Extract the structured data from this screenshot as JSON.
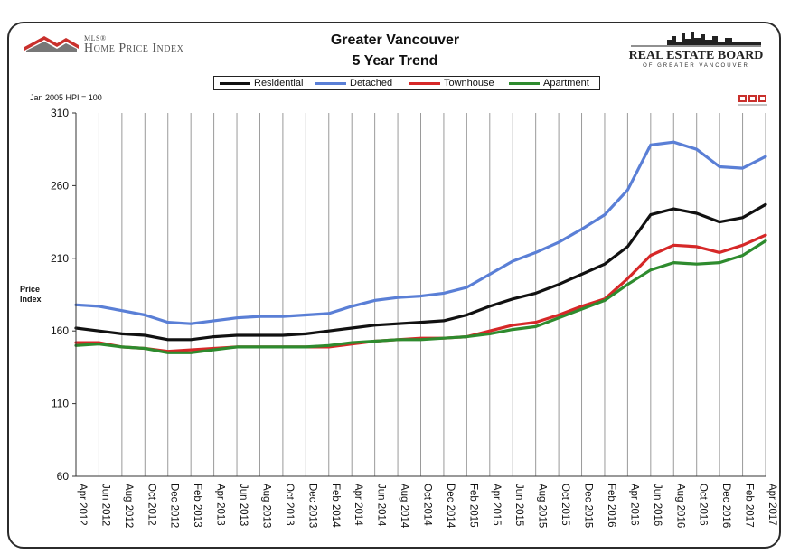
{
  "header": {
    "mls_small": "MLS®",
    "mls_text": "Home Price Index",
    "title_line1": "Greater Vancouver",
    "title_line2": "5 Year Trend",
    "board_name": "REAL ESTATE BOARD",
    "board_sub": "OF GREATER VANCOUVER"
  },
  "chart_data": {
    "type": "line",
    "title": "Greater Vancouver 5 Year Trend",
    "subtitle": "",
    "xlabel": "",
    "ylabel": "Price Index",
    "base_note": "Jan 2005 HPI = 100",
    "ylim": [
      60,
      310
    ],
    "yticks": [
      60,
      110,
      160,
      210,
      260,
      310
    ],
    "grid": "vertical",
    "legend_position": "top",
    "x_tick_labels": [
      "Apr 2012",
      "Jun 2012",
      "Aug 2012",
      "Oct 2012",
      "Dec 2012",
      "Feb 2013",
      "Apr 2013",
      "Jun 2013",
      "Aug 2013",
      "Oct 2013",
      "Dec 2013",
      "Feb 2014",
      "Apr 2014",
      "Jun 2014",
      "Aug 2014",
      "Oct 2014",
      "Dec 2014",
      "Feb 2015",
      "Apr 2015",
      "Jun 2015",
      "Aug 2015",
      "Oct 2015",
      "Dec 2015",
      "Feb 2016",
      "Apr 2016",
      "Jun 2016",
      "Aug 2016",
      "Oct 2016",
      "Dec 2016",
      "Feb 2017",
      "Apr 2017"
    ],
    "x": [
      "2012-04",
      "2012-06",
      "2012-08",
      "2012-10",
      "2012-12",
      "2013-02",
      "2013-04",
      "2013-06",
      "2013-08",
      "2013-10",
      "2013-12",
      "2014-02",
      "2014-04",
      "2014-06",
      "2014-08",
      "2014-10",
      "2014-12",
      "2015-02",
      "2015-04",
      "2015-06",
      "2015-08",
      "2015-10",
      "2015-12",
      "2016-02",
      "2016-04",
      "2016-06",
      "2016-08",
      "2016-10",
      "2016-12",
      "2017-02",
      "2017-04"
    ],
    "series": [
      {
        "name": "Residential",
        "color": "#111111",
        "values": [
          162,
          160,
          158,
          157,
          154,
          154,
          156,
          157,
          157,
          157,
          158,
          160,
          162,
          164,
          165,
          166,
          167,
          171,
          177,
          182,
          186,
          192,
          199,
          206,
          218,
          240,
          244,
          241,
          235,
          238,
          247
        ]
      },
      {
        "name": "Detached",
        "color": "#5a7fd6",
        "values": [
          178,
          177,
          174,
          171,
          166,
          165,
          167,
          169,
          170,
          170,
          171,
          172,
          177,
          181,
          183,
          184,
          186,
          190,
          199,
          208,
          214,
          221,
          230,
          240,
          257,
          288,
          290,
          285,
          273,
          272,
          280
        ]
      },
      {
        "name": "Townhouse",
        "color": "#d62828",
        "values": [
          152,
          152,
          149,
          148,
          146,
          147,
          148,
          149,
          149,
          149,
          149,
          149,
          151,
          153,
          154,
          155,
          155,
          156,
          160,
          164,
          166,
          171,
          177,
          182,
          196,
          212,
          219,
          218,
          214,
          219,
          226
        ]
      },
      {
        "name": "Apartment",
        "color": "#2e8b2e",
        "values": [
          150,
          151,
          149,
          148,
          145,
          145,
          147,
          149,
          149,
          149,
          149,
          150,
          152,
          153,
          154,
          154,
          155,
          156,
          158,
          161,
          163,
          169,
          175,
          181,
          192,
          202,
          207,
          206,
          207,
          212,
          222
        ]
      }
    ]
  }
}
